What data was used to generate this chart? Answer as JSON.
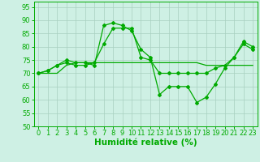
{
  "s1_y": [
    70,
    71,
    73,
    75,
    74,
    74,
    73,
    88,
    89,
    88,
    86,
    79,
    76,
    62,
    65,
    65,
    65,
    59,
    61,
    66,
    72,
    76,
    82,
    80
  ],
  "s2_y": [
    70,
    71,
    73,
    74,
    73,
    73,
    74,
    81,
    87,
    87,
    87,
    76,
    75,
    70,
    70,
    70,
    70,
    70,
    70,
    72,
    73,
    76,
    81,
    79
  ],
  "s3_y": [
    70,
    70,
    70,
    73,
    74,
    74,
    74,
    74,
    74,
    74,
    74,
    74,
    74,
    74,
    74,
    74,
    74,
    74,
    73,
    73,
    73,
    73,
    73,
    73
  ],
  "x": [
    0,
    1,
    2,
    3,
    4,
    5,
    6,
    7,
    8,
    9,
    10,
    11,
    12,
    13,
    14,
    15,
    16,
    17,
    18,
    19,
    20,
    21,
    22,
    23
  ],
  "xlabel": "Humidité relative (%)",
  "xlim": [
    -0.5,
    23.5
  ],
  "ylim": [
    50,
    97
  ],
  "yticks": [
    50,
    55,
    60,
    65,
    70,
    75,
    80,
    85,
    90,
    95
  ],
  "bg_color": "#cef0e4",
  "grid_color": "#a8cfc0",
  "line_color": "#00aa00",
  "xlabel_fontsize": 7.5,
  "tick_fontsize": 6
}
